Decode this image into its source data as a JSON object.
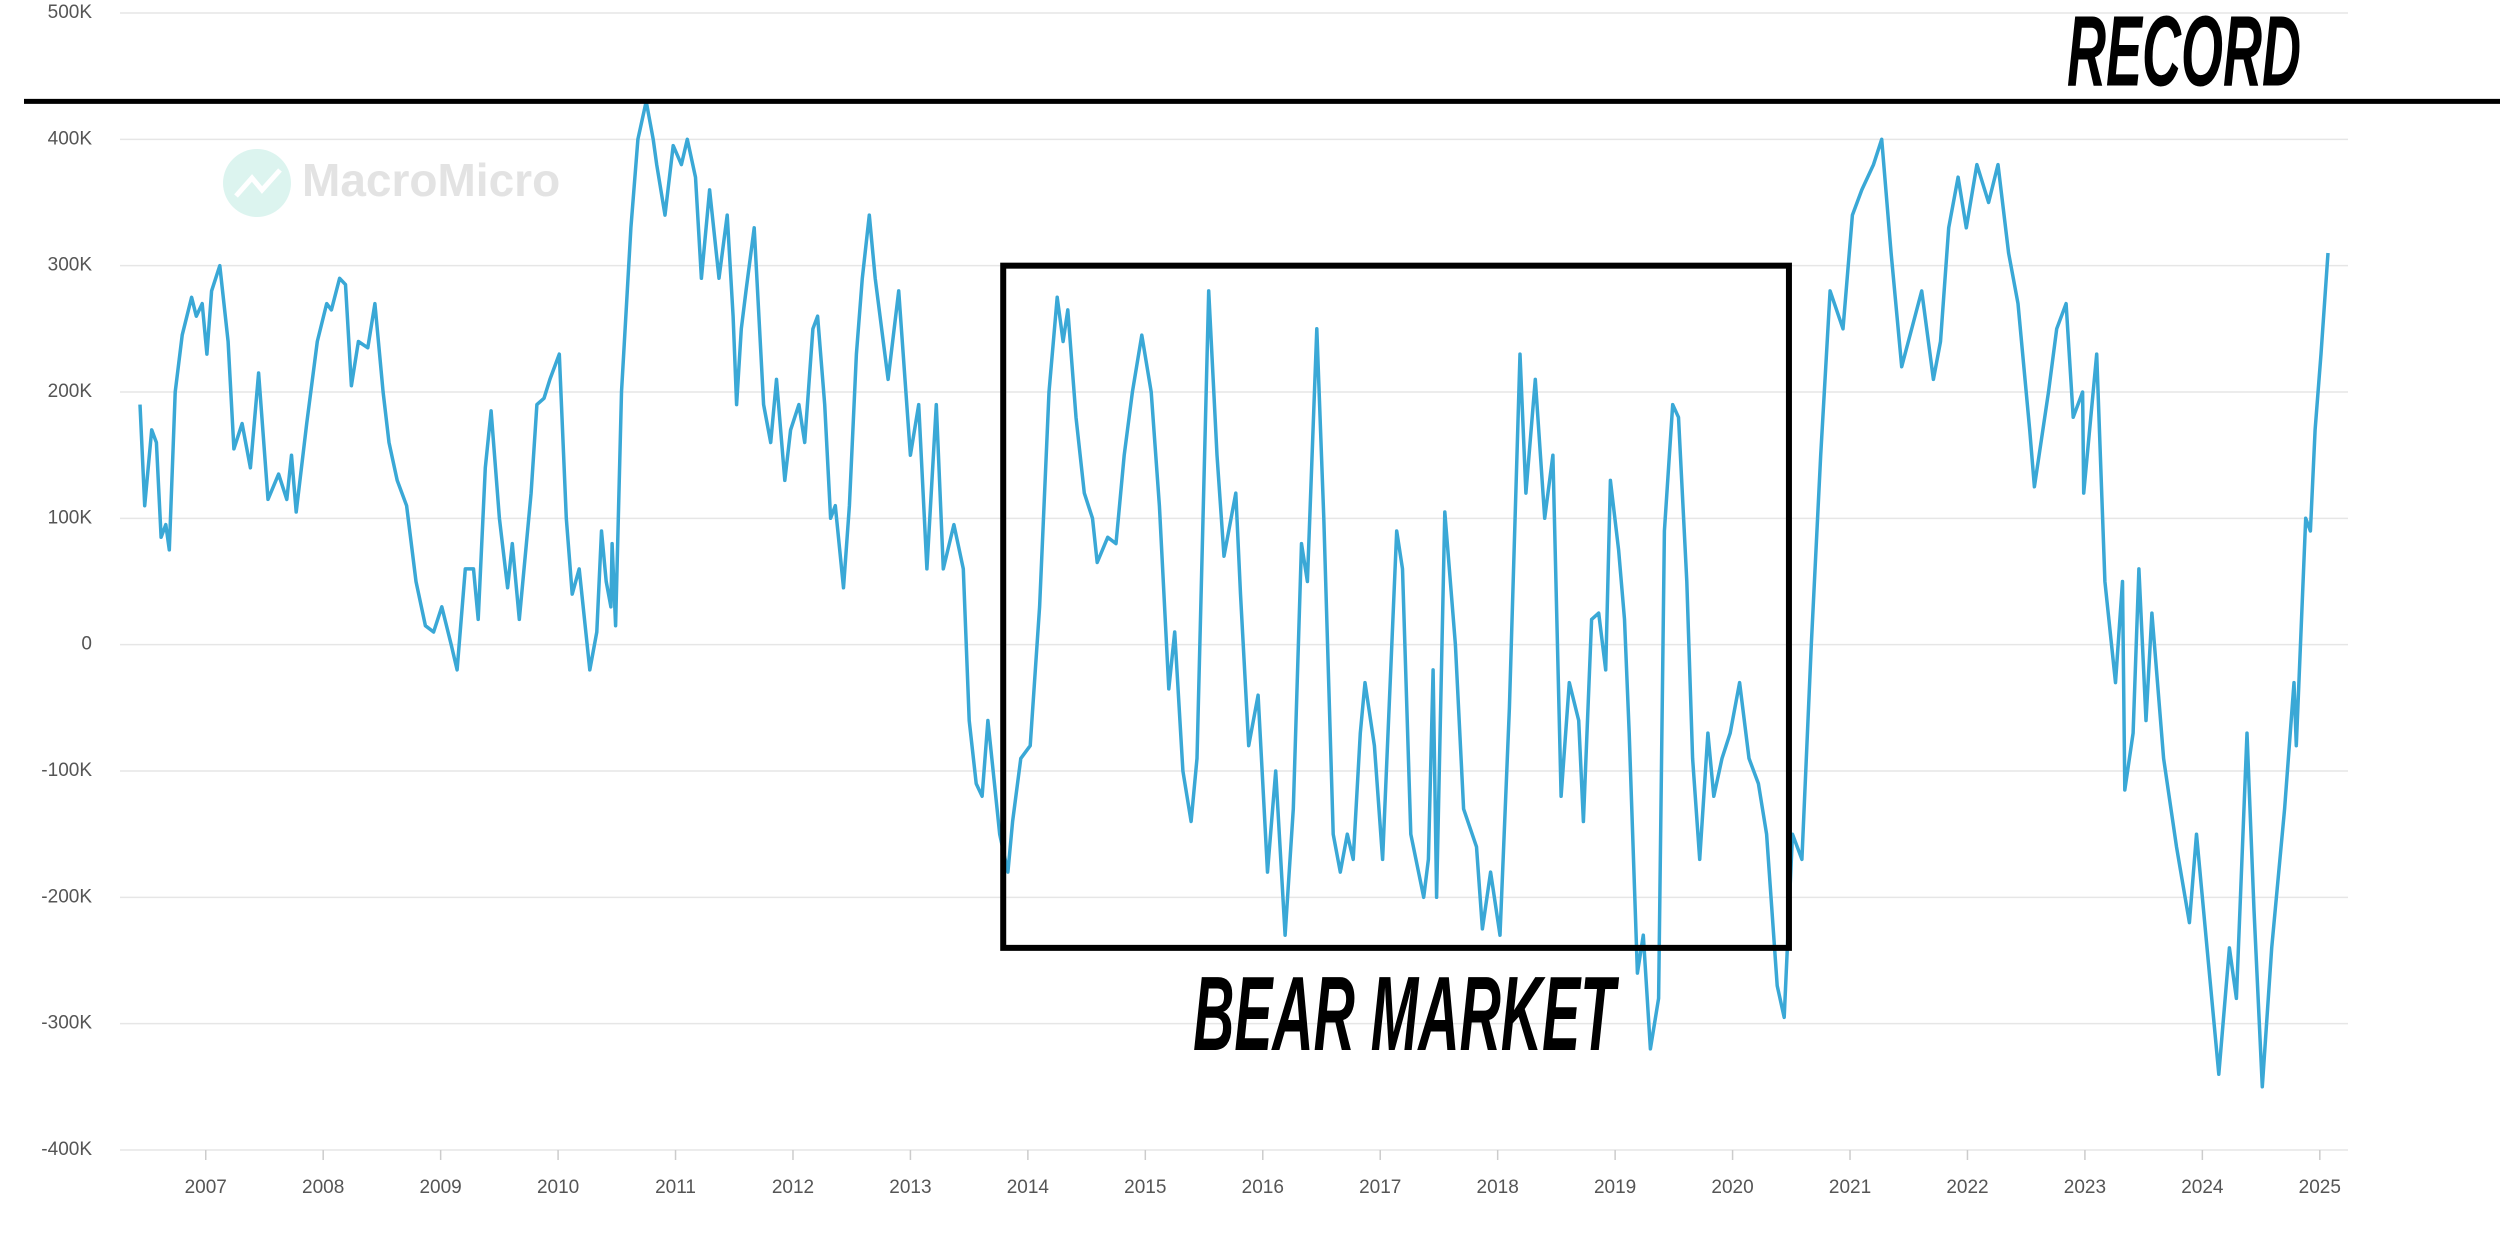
{
  "chart_data": {
    "type": "line",
    "color": "#3aa8d6",
    "grid": true,
    "watermark": "MacroMicro",
    "xlim": [
      2006.27,
      2025.24
    ],
    "xticks": [
      2007,
      2008,
      2009,
      2010,
      2011,
      2012,
      2013,
      2014,
      2015,
      2016,
      2017,
      2018,
      2019,
      2020,
      2021,
      2022,
      2023,
      2024,
      2025
    ],
    "ylim": [
      -400000,
      500000
    ],
    "yticks": [
      {
        "value": -400000,
        "label": "-400K"
      },
      {
        "value": -300000,
        "label": "-300K"
      },
      {
        "value": -200000,
        "label": "-200K"
      },
      {
        "value": -100000,
        "label": "-100K"
      },
      0,
      {
        "value": 100000,
        "label": "100K"
      },
      {
        "value": 200000,
        "label": "200K"
      },
      {
        "value": 300000,
        "label": "300K"
      },
      {
        "value": 400000,
        "label": "400K"
      },
      {
        "value": 500000,
        "label": "500K"
      }
    ],
    "annotations": [
      {
        "text": "RECORD",
        "y": 430000
      },
      {
        "text": "BEAR MARKET",
        "x": [
          2013.79,
          2020.48
        ],
        "y": [
          -240000,
          300000
        ]
      }
    ],
    "x": [
      2006.44,
      2006.48,
      2006.54,
      2006.58,
      2006.62,
      2006.66,
      2006.69,
      2006.74,
      2006.8,
      2006.88,
      2006.92,
      2006.97,
      2007.01,
      2007.05,
      2007.12,
      2007.19,
      2007.24,
      2007.31,
      2007.38,
      2007.45,
      2007.53,
      2007.62,
      2007.69,
      2007.73,
      2007.77,
      2007.86,
      2007.95,
      2008.03,
      2008.07,
      2008.14,
      2008.19,
      2008.24,
      2008.3,
      2008.38,
      2008.44,
      2008.51,
      2008.56,
      2008.63,
      2008.71,
      2008.79,
      2008.87,
      2008.94,
      2009.01,
      2009.09,
      2009.14,
      2009.21,
      2009.28,
      2009.32,
      2009.38,
      2009.43,
      2009.5,
      2009.57,
      2009.61,
      2009.67,
      2009.73,
      2009.77,
      2009.82,
      2009.88,
      2009.93,
      2010.01,
      2010.07,
      2010.12,
      2010.18,
      2010.27,
      2010.33,
      2010.37,
      2010.41,
      2010.45,
      2010.46,
      2010.49,
      2010.54,
      2010.62,
      2010.68,
      2010.75,
      2010.81,
      2010.84,
      2010.91,
      2010.98,
      2011.05,
      2011.1,
      2011.17,
      2011.22,
      2011.29,
      2011.37,
      2011.44,
      2011.49,
      2011.52,
      2011.56,
      2011.6,
      2011.67,
      2011.75,
      2011.81,
      2011.86,
      2011.93,
      2011.98,
      2012.05,
      2012.1,
      2012.17,
      2012.21,
      2012.27,
      2012.32,
      2012.36,
      2012.43,
      2012.48,
      2012.54,
      2012.59,
      2012.65,
      2012.7,
      2012.81,
      2012.9,
      2013.0,
      2013.07,
      2013.14,
      2013.22,
      2013.28,
      2013.37,
      2013.45,
      2013.5,
      2013.56,
      2013.61,
      2013.66,
      2013.76,
      2013.83,
      2013.87,
      2013.94,
      2014.02,
      2014.1,
      2014.18,
      2014.25,
      2014.3,
      2014.34,
      2014.41,
      2014.48,
      2014.55,
      2014.59,
      2014.68,
      2014.75,
      2014.82,
      2014.89,
      2014.97,
      2015.05,
      2015.12,
      2015.2,
      2015.25,
      2015.32,
      2015.39,
      2015.44,
      2015.54,
      2015.61,
      2015.67,
      2015.77,
      2015.81,
      2015.88,
      2015.96,
      2016.04,
      2016.11,
      2016.19,
      2016.26,
      2016.33,
      2016.38,
      2016.46,
      2016.52,
      2016.6,
      2016.66,
      2016.72,
      2016.77,
      2016.83,
      2016.87,
      2016.95,
      2017.02,
      2017.14,
      2017.19,
      2017.26,
      2017.37,
      2017.41,
      2017.45,
      2017.48,
      2017.55,
      2017.64,
      2017.71,
      2017.82,
      2017.87,
      2017.94,
      2018.02,
      2018.1,
      2018.19,
      2018.24,
      2018.32,
      2018.4,
      2018.47,
      2018.54,
      2018.61,
      2018.69,
      2018.73,
      2018.8,
      2018.86,
      2018.92,
      2018.96,
      2019.03,
      2019.08,
      2019.12,
      2019.19,
      2019.24,
      2019.3,
      2019.37,
      2019.42,
      2019.49,
      2019.54,
      2019.61,
      2019.66,
      2019.72,
      2019.79,
      2019.84,
      2019.91,
      2019.98,
      2020.06,
      2020.14,
      2020.22,
      2020.29,
      2020.38,
      2020.44,
      2020.51,
      2020.59,
      2020.67,
      2020.75,
      2020.83,
      2020.94,
      2021.02,
      2021.1,
      2021.2,
      2021.27,
      2021.35,
      2021.44,
      2021.61,
      2021.71,
      2021.77,
      2021.84,
      2021.92,
      2021.99,
      2022.08,
      2022.18,
      2022.26,
      2022.35,
      2022.43,
      2022.53,
      2022.57,
      2022.69,
      2022.76,
      2022.84,
      2022.9,
      2022.98,
      2022.99,
      2023.1,
      2023.17,
      2023.26,
      2023.32,
      2023.34,
      2023.41,
      2023.46,
      2023.52,
      2023.57,
      2023.67,
      2023.78,
      2023.89,
      2023.95,
      2024.05,
      2024.14,
      2024.23,
      2024.29,
      2024.38,
      2024.44,
      2024.51,
      2024.59,
      2024.7,
      2024.78,
      2024.8,
      2024.88,
      2024.92,
      2024.96,
      2025.01,
      2025.07
    ],
    "values": [
      190000,
      110000,
      170000,
      160000,
      85000,
      95000,
      75000,
      200000,
      245000,
      275000,
      260000,
      270000,
      230000,
      280000,
      300000,
      240000,
      155000,
      175000,
      140000,
      215000,
      115000,
      135000,
      115000,
      150000,
      105000,
      175000,
      240000,
      270000,
      265000,
      290000,
      285000,
      205000,
      240000,
      235000,
      270000,
      200000,
      160000,
      130000,
      110000,
      50000,
      15000,
      10000,
      30000,
      0,
      -20000,
      60000,
      60000,
      20000,
      140000,
      185000,
      100000,
      45000,
      80000,
      20000,
      80000,
      120000,
      190000,
      195000,
      210000,
      230000,
      100000,
      40000,
      60000,
      -20000,
      10000,
      90000,
      50000,
      30000,
      80000,
      15000,
      200000,
      330000,
      400000,
      430000,
      400000,
      380000,
      340000,
      395000,
      380000,
      400000,
      370000,
      290000,
      360000,
      290000,
      340000,
      260000,
      190000,
      250000,
      280000,
      330000,
      190000,
      160000,
      210000,
      130000,
      170000,
      190000,
      160000,
      250000,
      260000,
      190000,
      100000,
      110000,
      45000,
      110000,
      230000,
      290000,
      340000,
      290000,
      210000,
      280000,
      150000,
      190000,
      60000,
      190000,
      60000,
      95000,
      60000,
      -60000,
      -110000,
      -120000,
      -60000,
      -150000,
      -180000,
      -140000,
      -90000,
      -80000,
      30000,
      200000,
      275000,
      240000,
      265000,
      180000,
      120000,
      100000,
      65000,
      85000,
      80000,
      150000,
      200000,
      245000,
      200000,
      110000,
      -35000,
      10000,
      -100000,
      -140000,
      -90000,
      280000,
      150000,
      70000,
      120000,
      40000,
      -80000,
      -40000,
      -180000,
      -100000,
      -230000,
      -130000,
      80000,
      50000,
      250000,
      100000,
      -150000,
      -180000,
      -150000,
      -170000,
      -70000,
      -30000,
      -80000,
      -170000,
      90000,
      60000,
      -150000,
      -200000,
      -170000,
      -20000,
      -200000,
      105000,
      0,
      -130000,
      -160000,
      -225000,
      -180000,
      -230000,
      -50000,
      230000,
      120000,
      210000,
      100000,
      150000,
      -120000,
      -30000,
      -60000,
      -140000,
      20000,
      25000,
      -20000,
      130000,
      75000,
      20000,
      -70000,
      -260000,
      -230000,
      -320000,
      -280000,
      90000,
      190000,
      180000,
      50000,
      -90000,
      -170000,
      -70000,
      -120000,
      -90000,
      -70000,
      -30000,
      -90000,
      -110000,
      -150000,
      -270000,
      -295000,
      -150000,
      -170000,
      0,
      150000,
      280000,
      250000,
      340000,
      360000,
      380000,
      400000,
      310000,
      220000,
      280000,
      210000,
      240000,
      330000,
      370000,
      330000,
      380000,
      350000,
      380000,
      310000,
      270000,
      170000,
      125000,
      200000,
      250000,
      270000,
      180000,
      200000,
      120000,
      230000,
      50000,
      -30000,
      50000,
      -115000,
      -70000,
      60000,
      -60000,
      25000,
      -90000,
      -160000,
      -220000,
      -150000,
      -250000,
      -340000,
      -240000,
      -280000,
      -70000,
      -210000,
      -350000,
      -240000,
      -130000,
      -30000,
      -80000,
      100000,
      90000,
      170000,
      230000,
      310000
    ]
  }
}
